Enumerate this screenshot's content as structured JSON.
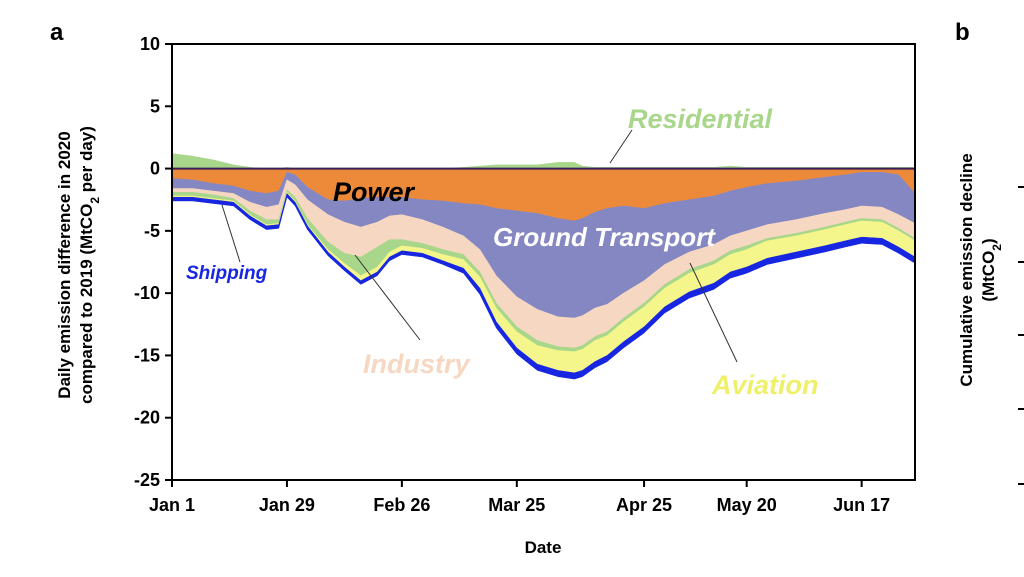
{
  "panel_a": "a",
  "panel_b": "b",
  "ylabel_line1": "Daily emission difference in 2020",
  "ylabel_line2_pre": "compared to 2019 (MtCO",
  "ylabel_line2_sub": "2",
  "ylabel_line2_post": " per day)",
  "b_ylabel_line1": "Cumulative emission decline",
  "b_ylabel_line2_pre": "(MtCO",
  "b_ylabel_line2_sub": "2",
  "b_ylabel_line2_post": ")",
  "colors": {
    "power": "#ED8A3A",
    "ground_transport": "#8587C2",
    "industry": "#F6D8C2",
    "residential": "#A8D68A",
    "aviation": "#F4F58A",
    "shipping": "#1726E0"
  },
  "chart_data": {
    "type": "area",
    "xlabel": "Date",
    "ylim": [
      -25,
      10
    ],
    "yticks": [
      "10",
      "5",
      "0",
      "-5",
      "-10",
      "-15",
      "-20",
      "-25"
    ],
    "yticks_values": [
      10,
      5,
      0,
      -5,
      -10,
      -15,
      -20,
      -25
    ],
    "xticks": [
      "Jan 1",
      "Jan 29",
      "Feb 26",
      "Mar 25",
      "Apr 25",
      "May 20",
      "Jun 17"
    ],
    "x": [
      "Jan 1",
      "Jan 6",
      "Jan 11",
      "Jan 16",
      "Jan 20",
      "Jan 24",
      "Jan 27",
      "Jan 29",
      "Jan 31",
      "Feb 3",
      "Feb 8",
      "Feb 12",
      "Feb 16",
      "Feb 20",
      "Feb 23",
      "Feb 26",
      "Mar 2",
      "Mar 7",
      "Mar 12",
      "Mar 16",
      "Mar 20",
      "Mar 25",
      "Mar 30",
      "Apr 4",
      "Apr 8",
      "Apr 10",
      "Apr 13",
      "Apr 16",
      "Apr 20",
      "Apr 25",
      "Apr 30",
      "May 6",
      "May 12",
      "May 16",
      "May 20",
      "May 25",
      "Jun 1",
      "Jun 8",
      "Jun 13",
      "Jun 17",
      "Jun 22",
      "Jun 26",
      "Jun 30"
    ],
    "x_days": [
      1,
      6,
      11,
      16,
      20,
      24,
      27,
      29,
      31,
      34,
      39,
      43,
      47,
      51,
      54,
      57,
      62,
      67,
      72,
      76,
      80,
      85,
      90,
      95,
      99,
      101,
      104,
      107,
      111,
      116,
      121,
      127,
      133,
      137,
      141,
      146,
      153,
      160,
      165,
      169,
      174,
      178,
      182
    ],
    "series": [
      {
        "name": "Residential",
        "values": [
          1.2,
          1.0,
          0.7,
          0.3,
          0.1,
          0.0,
          0.0,
          0.1,
          0.0,
          0.0,
          0.0,
          0.0,
          0.0,
          0.0,
          0.0,
          0.0,
          0.0,
          0.0,
          0.1,
          0.2,
          0.3,
          0.3,
          0.3,
          0.5,
          0.5,
          0.2,
          0.1,
          0.1,
          0.1,
          0.1,
          0.1,
          0.1,
          0.1,
          0.2,
          0.1,
          0.1,
          0.1,
          0.1,
          0.1,
          0.1,
          0.1,
          0.1,
          0.1
        ]
      },
      {
        "name": "Power",
        "values": [
          -0.8,
          -0.9,
          -1.2,
          -1.4,
          -1.8,
          -2.0,
          -1.8,
          -0.3,
          -0.5,
          -1.5,
          -2.5,
          -2.6,
          -2.4,
          -2.3,
          -2.3,
          -2.3,
          -2.5,
          -2.6,
          -2.8,
          -2.9,
          -3.2,
          -3.4,
          -3.6,
          -4.0,
          -4.2,
          -4.0,
          -3.5,
          -3.2,
          -3.0,
          -3.2,
          -2.8,
          -2.5,
          -2.2,
          -1.8,
          -1.5,
          -1.2,
          -1.0,
          -0.7,
          -0.5,
          -0.3,
          -0.3,
          -0.5,
          -2.0
        ]
      },
      {
        "name": "Ground Transport",
        "values": [
          -0.8,
          -0.7,
          -0.6,
          -0.6,
          -0.9,
          -1.1,
          -1.1,
          -0.6,
          -0.8,
          -1.0,
          -1.2,
          -1.7,
          -2.3,
          -2.0,
          -1.5,
          -1.4,
          -1.6,
          -2.1,
          -2.6,
          -3.6,
          -5.4,
          -6.9,
          -7.7,
          -7.9,
          -7.8,
          -7.8,
          -7.7,
          -7.7,
          -7.0,
          -5.8,
          -4.9,
          -4.2,
          -3.9,
          -3.6,
          -3.5,
          -3.3,
          -3.1,
          -2.9,
          -2.8,
          -2.7,
          -2.8,
          -3.2,
          -2.4
        ]
      },
      {
        "name": "Industry",
        "values": [
          -0.3,
          -0.3,
          -0.3,
          -0.4,
          -0.7,
          -1.0,
          -1.2,
          -0.8,
          -1.0,
          -1.5,
          -2.2,
          -2.5,
          -2.4,
          -2.0,
          -1.9,
          -2.0,
          -1.9,
          -1.8,
          -1.5,
          -1.8,
          -2.2,
          -2.4,
          -2.5,
          -2.4,
          -2.4,
          -2.4,
          -2.3,
          -2.2,
          -2.0,
          -1.8,
          -1.6,
          -1.4,
          -1.3,
          -1.2,
          -1.2,
          -1.1,
          -1.1,
          -1.1,
          -1.0,
          -1.0,
          -1.0,
          -1.1,
          -1.2
        ]
      },
      {
        "name": "Aviation",
        "values": [
          -0.1,
          -0.1,
          -0.1,
          -0.1,
          -0.1,
          -0.1,
          -0.1,
          -0.1,
          -0.1,
          -0.1,
          -0.2,
          -0.3,
          -0.4,
          -0.4,
          -0.4,
          -0.4,
          -0.4,
          -0.5,
          -0.7,
          -0.9,
          -1.1,
          -1.3,
          -1.5,
          -1.6,
          -1.7,
          -1.7,
          -1.7,
          -1.6,
          -1.6,
          -1.6,
          -1.5,
          -1.5,
          -1.5,
          -1.4,
          -1.4,
          -1.4,
          -1.3,
          -1.3,
          -1.3,
          -1.3,
          -1.3,
          -1.3,
          -1.3
        ]
      },
      {
        "name": "Shipping",
        "values": [
          -0.3,
          -0.3,
          -0.3,
          -0.3,
          -0.3,
          -0.3,
          -0.3,
          -0.3,
          -0.3,
          -0.3,
          -0.3,
          -0.3,
          -0.3,
          -0.3,
          -0.3,
          -0.3,
          -0.3,
          -0.3,
          -0.4,
          -0.5,
          -0.5,
          -0.5,
          -0.5,
          -0.5,
          -0.5,
          -0.5,
          -0.5,
          -0.5,
          -0.5,
          -0.5,
          -0.5,
          -0.5,
          -0.5,
          -0.5,
          -0.5,
          -0.5,
          -0.5,
          -0.5,
          -0.5,
          -0.5,
          -0.5,
          -0.5,
          -0.5
        ]
      }
    ],
    "residential_neg": [
      -0.3,
      -0.3,
      -0.3,
      -0.2,
      -0.3,
      -0.4,
      -0.3,
      -0.2,
      -0.3,
      -0.5,
      -0.6,
      -0.8,
      -1.5,
      -1.6,
      -1.0,
      -0.5,
      -0.4,
      -0.4,
      -0.4,
      -0.4,
      -0.4,
      -0.4,
      -0.4,
      -0.3,
      -0.3,
      -0.3,
      -0.3,
      -0.3,
      -0.3,
      -0.3,
      -0.3,
      -0.3,
      -0.3,
      -0.3,
      -0.3,
      -0.2,
      -0.2,
      -0.2,
      -0.2,
      -0.2,
      -0.2,
      -0.2,
      -0.2
    ],
    "annotations": [
      "Residential",
      "Power",
      "Ground Transport",
      "Industry",
      "Aviation",
      "Shipping"
    ]
  }
}
